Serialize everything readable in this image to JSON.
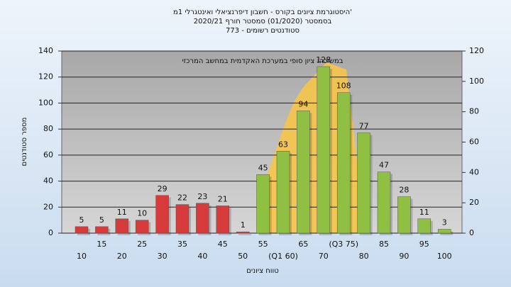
{
  "chart_data": {
    "type": "bar",
    "title": [
      "היסטוגרמת ציונים בקורס - חשבון דיפרנציאלי ואינטגרלי 1מ'",
      "בסמסטר (01/2020) סמסטר חורף 2020/21",
      "סטודנטים רשומים - 773"
    ],
    "annotation": "במשיכה: ציון סופי במערכת האקדמית במחשב המרכזי",
    "ylabel": "מספר סטודנטים",
    "xlabel": "טווח ציונים",
    "categories": [
      "10",
      "15",
      "20",
      "25",
      "30",
      "35",
      "40",
      "45",
      "50",
      "55",
      "(Q1 60)",
      "65",
      "70",
      "(Q3 75)",
      "80",
      "85",
      "90",
      "95",
      "100"
    ],
    "values": [
      5,
      5,
      11,
      10,
      29,
      22,
      23,
      21,
      1,
      45,
      63,
      94,
      128,
      108,
      77,
      47,
      28,
      11,
      3
    ],
    "colors": [
      "#d63a3a",
      "#d63a3a",
      "#d63a3a",
      "#d63a3a",
      "#d63a3a",
      "#d63a3a",
      "#d63a3a",
      "#d63a3a",
      "#d63a3a",
      "#8fc043",
      "#8fc043",
      "#8fc043",
      "#8fc043",
      "#8fc043",
      "#8fc043",
      "#8fc043",
      "#8fc043",
      "#8fc043",
      "#8fc043"
    ],
    "ylim": [
      0,
      140
    ],
    "yticks": [
      0,
      20,
      40,
      60,
      80,
      100,
      120,
      140
    ],
    "y2lim": [
      0,
      120
    ],
    "y2ticks": [
      0,
      20,
      40,
      60,
      80,
      100,
      120
    ],
    "grid": true
  }
}
